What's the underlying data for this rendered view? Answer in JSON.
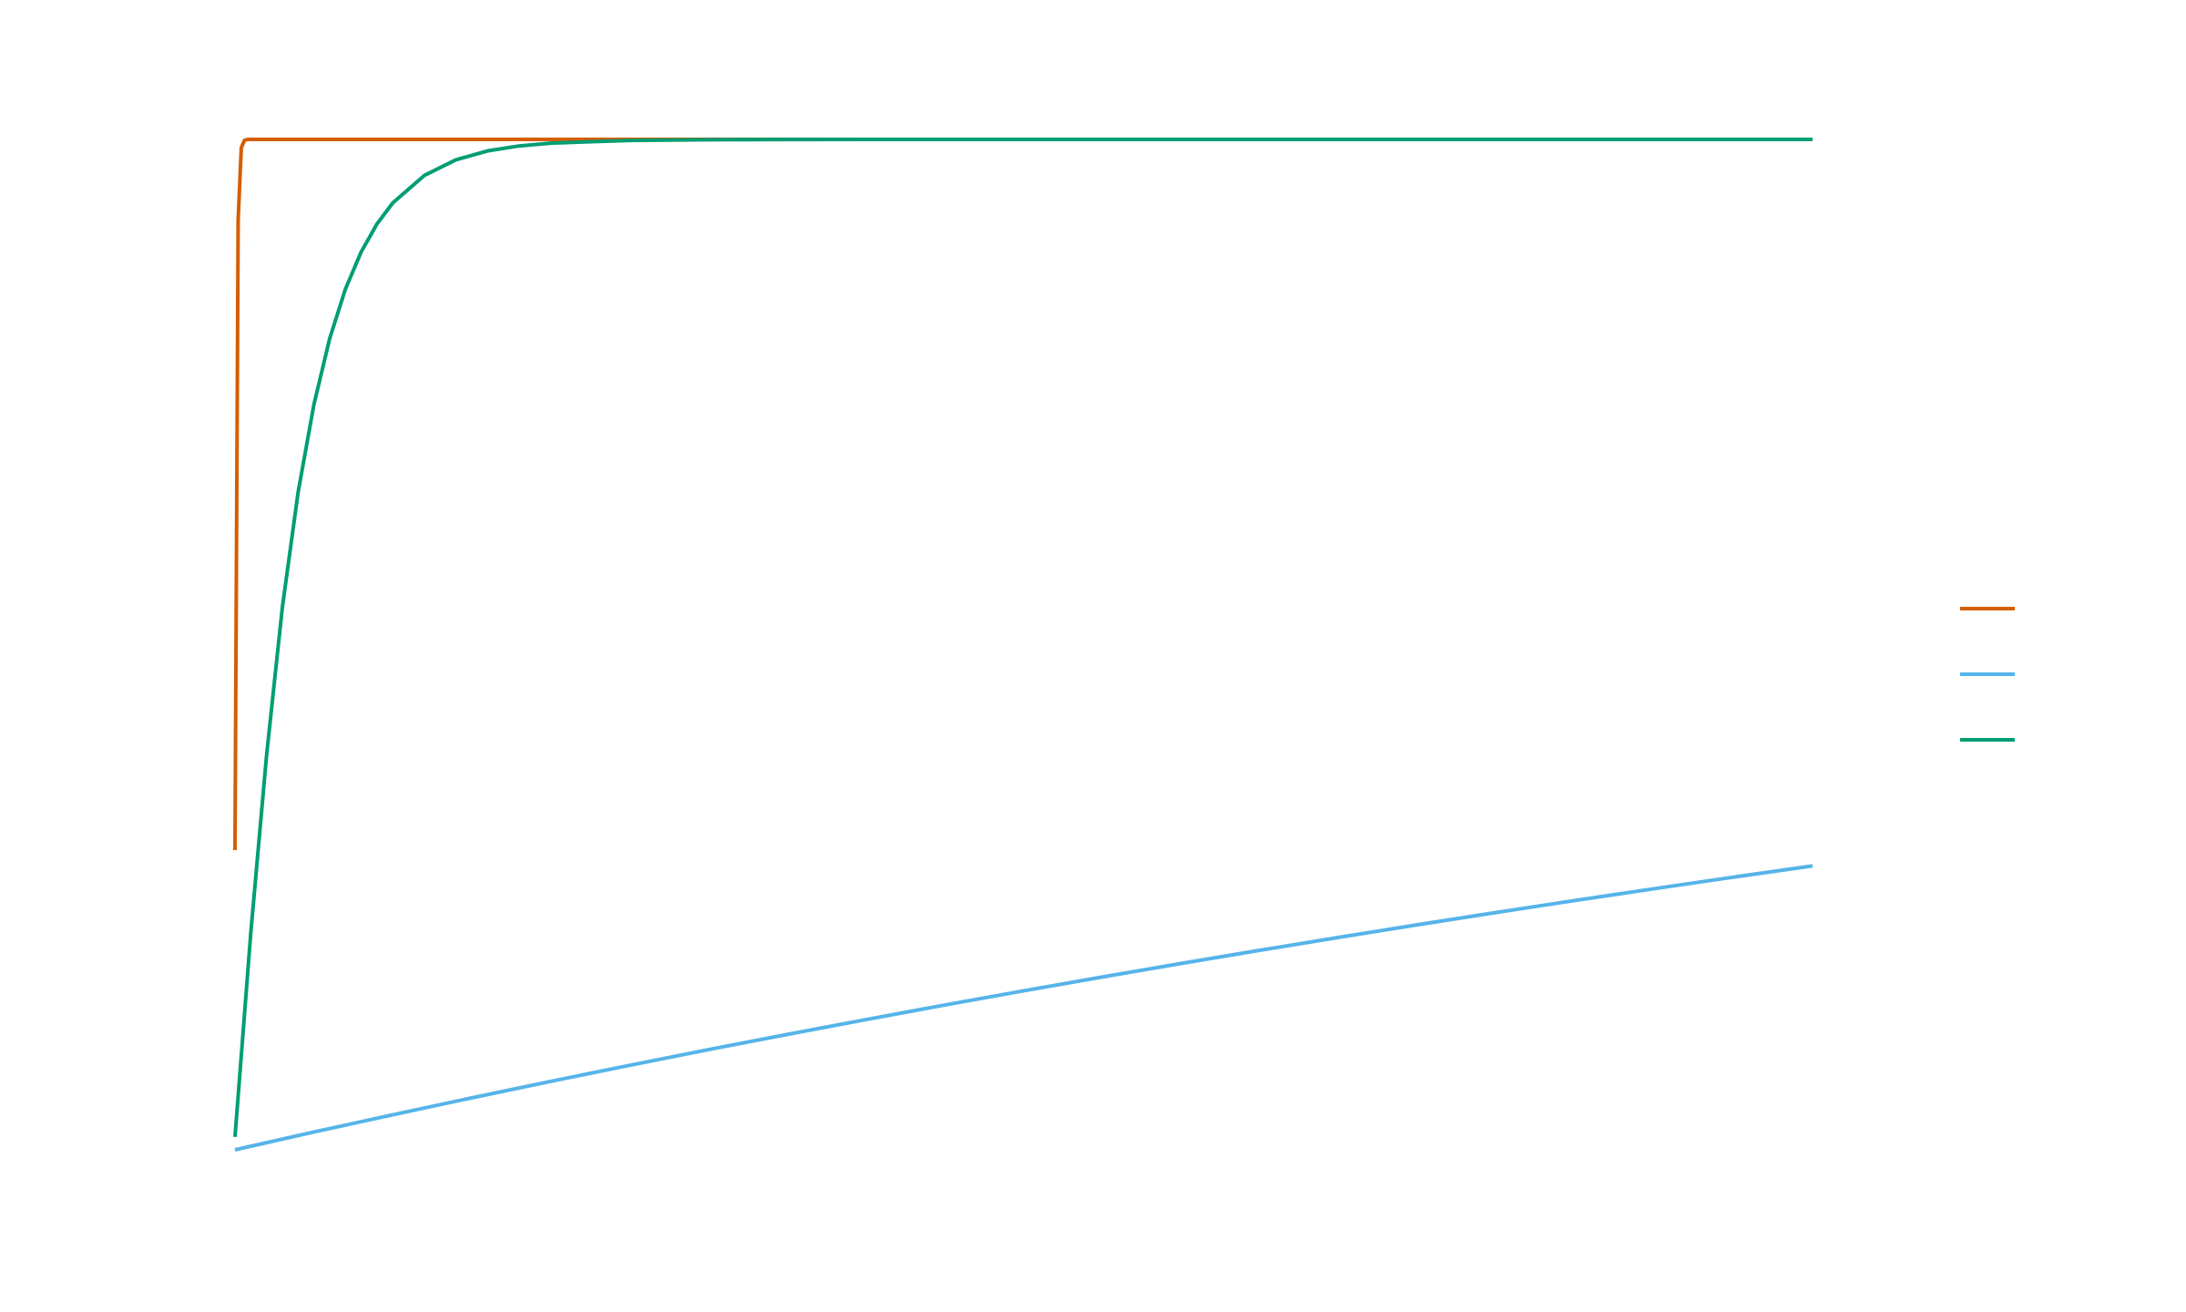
{
  "chart_data": {
    "type": "line",
    "title": "",
    "xlabel": "",
    "ylabel": "",
    "xlim": [
      0,
      100
    ],
    "ylim": [
      0,
      1
    ],
    "grid": false,
    "legend_position": "right",
    "series": [
      {
        "color": "#D55E00",
        "x": [
          0,
          0.2,
          0.4,
          0.6,
          0.8,
          1,
          1.5,
          2,
          3,
          4,
          5,
          6,
          8,
          10,
          15,
          20,
          30,
          40,
          50,
          60,
          70,
          80,
          90,
          100
        ],
        "values": [
          0.2967,
          0.9201,
          0.9917,
          0.9991,
          0.9999,
          1.0,
          1.0,
          1.0,
          1.0,
          1.0,
          1.0,
          1.0,
          1.0,
          1.0,
          1.0,
          1.0,
          1.0,
          1.0,
          1.0,
          1.0,
          1.0,
          1.0,
          1.0,
          1.0
        ]
      },
      {
        "color": "#56B4E9",
        "x": [
          0,
          5,
          10,
          15,
          20,
          25,
          30,
          35,
          40,
          45,
          50,
          55,
          60,
          65,
          70,
          75,
          80,
          85,
          90,
          95,
          100
        ],
        "values": [
          0.0,
          0.0176,
          0.0347,
          0.0514,
          0.0677,
          0.0836,
          0.0991,
          0.1142,
          0.1289,
          0.1433,
          0.1574,
          0.1711,
          0.1845,
          0.1976,
          0.2103,
          0.2228,
          0.235,
          0.2469,
          0.2585,
          0.2699,
          0.281
        ]
      },
      {
        "color": "#009E73",
        "x": [
          0,
          1,
          2,
          3,
          4,
          5,
          6,
          7,
          8,
          9,
          10,
          12,
          14,
          16,
          18,
          20,
          25,
          30,
          35,
          40,
          50,
          60,
          70,
          80,
          90,
          100
        ],
        "values": [
          0.0128,
          0.2145,
          0.3902,
          0.5366,
          0.6507,
          0.7374,
          0.8028,
          0.8519,
          0.8887,
          0.9163,
          0.9371,
          0.9643,
          0.9798,
          0.9886,
          0.9935,
          0.9963,
          0.999,
          0.9997,
          0.9999,
          1.0,
          1.0,
          1.0,
          1.0,
          1.0,
          1.0,
          1.0
        ]
      }
    ]
  }
}
